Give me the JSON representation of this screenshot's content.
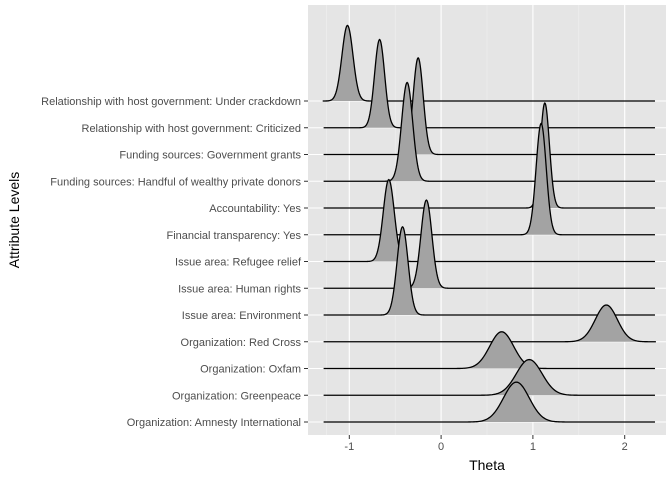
{
  "chart_data": {
    "type": "ridgeline",
    "title": "",
    "xlabel": "Theta",
    "ylabel": "Attribute Levels",
    "xlim": [
      -1.45,
      2.45
    ],
    "xticks": [
      -1,
      0,
      1,
      2
    ],
    "xtick_labels": [
      "-1",
      "0",
      "1",
      "2"
    ],
    "grid": true,
    "legend": "none",
    "colors": {
      "panel": "#e5e5e5",
      "grid_major": "#ffffff",
      "fill": "#a3a3a3",
      "line": "#000000",
      "tick_text": "#4d4d4d"
    },
    "categories": [
      "Relationship with host government: Under crackdown",
      "Relationship with host government: Criticized",
      "Funding sources: Government grants",
      "Funding sources: Handful of wealthy private donors",
      "Accountability: Yes",
      "Financial transparency: Yes",
      "Issue area: Refugee relief",
      "Issue area: Human rights",
      "Issue area: Environment",
      "Organization: Red Cross",
      "Organization: Oxfam",
      "Organization: Greenpeace",
      "Organization: Amnesty International"
    ],
    "series": [
      {
        "category": "Relationship with host government: Under crackdown",
        "mean": -1.02,
        "sd": 0.06,
        "peak_height": 3.6
      },
      {
        "category": "Relationship with host government: Criticized",
        "mean": -0.67,
        "sd": 0.055,
        "peak_height": 4.2
      },
      {
        "category": "Funding sources: Government grants",
        "mean": -0.25,
        "sd": 0.055,
        "peak_height": 4.6
      },
      {
        "category": "Funding sources: Handful of wealthy private donors",
        "mean": -0.37,
        "sd": 0.06,
        "peak_height": 4.7
      },
      {
        "category": "Accountability: Yes",
        "mean": 1.13,
        "sd": 0.05,
        "peak_height": 5.0
      },
      {
        "category": "Financial transparency: Yes",
        "mean": 1.09,
        "sd": 0.055,
        "peak_height": 5.3
      },
      {
        "category": "Issue area: Refugee relief",
        "mean": -0.57,
        "sd": 0.06,
        "peak_height": 3.9
      },
      {
        "category": "Issue area: Human rights",
        "mean": -0.16,
        "sd": 0.06,
        "peak_height": 4.2
      },
      {
        "category": "Issue area: Environment",
        "mean": -0.42,
        "sd": 0.06,
        "peak_height": 4.2
      },
      {
        "category": "Organization: Red Cross",
        "mean": 1.8,
        "sd": 0.12,
        "peak_height": 1.75
      },
      {
        "category": "Organization: Oxfam",
        "mean": 0.66,
        "sd": 0.13,
        "peak_height": 1.75
      },
      {
        "category": "Organization: Greenpeace",
        "mean": 0.96,
        "sd": 0.14,
        "peak_height": 1.7
      },
      {
        "category": "Organization: Amnesty International",
        "mean": 0.82,
        "sd": 0.14,
        "peak_height": 1.9
      }
    ]
  }
}
